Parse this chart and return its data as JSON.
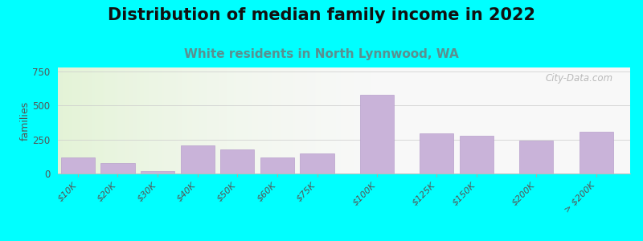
{
  "title": "Distribution of median family income in 2022",
  "subtitle": "White residents in North Lynnwood, WA",
  "categories": [
    "$10K",
    "$20K",
    "$30K",
    "$40K",
    "$50K",
    "$60K",
    "$75K",
    "$100K",
    "$125K",
    "$150K",
    "$200K",
    "> $200K"
  ],
  "values": [
    120,
    75,
    15,
    205,
    175,
    120,
    150,
    580,
    295,
    280,
    245,
    310
  ],
  "bar_color": "#c9b3d9",
  "bar_edge_color": "#b8a0cc",
  "ylabel": "families",
  "ylim": [
    0,
    780
  ],
  "yticks": [
    0,
    250,
    500,
    750
  ],
  "background_color": "#00ffff",
  "title_fontsize": 15,
  "subtitle_fontsize": 11,
  "subtitle_color": "#5a9090",
  "watermark": "City-Data.com",
  "grid_color": "#cccccc",
  "tick_label_color": "#555555"
}
